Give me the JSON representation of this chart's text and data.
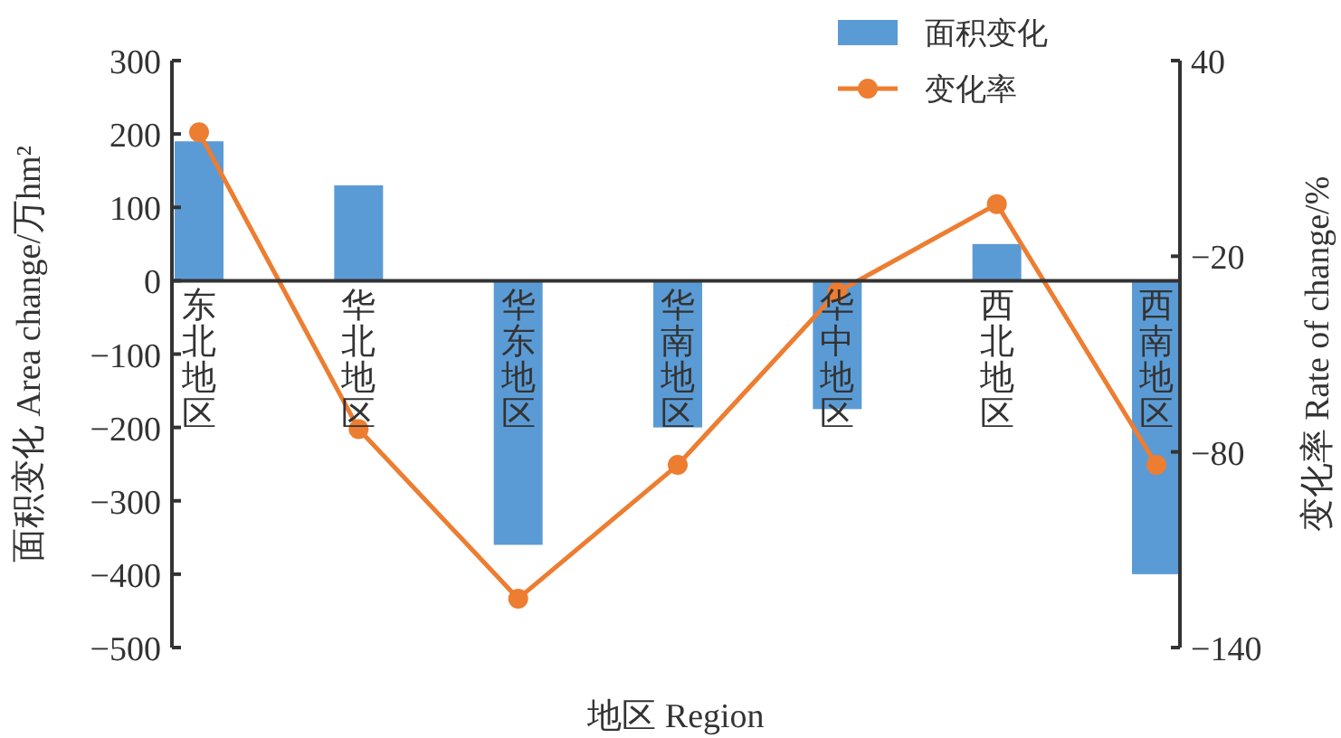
{
  "chart_data": {
    "type": "bar",
    "xlabel": "地区 Region",
    "ylabel": "面积变化 Area change/万hm²",
    "y2label": "变化率 Rate of change/%",
    "categories": [
      "东北地区",
      "华北地区",
      "华东地区",
      "华南地区",
      "华中地区",
      "西北地区",
      "西南地区"
    ],
    "series": [
      {
        "name": "面积变化",
        "color": "#5b9bd5",
        "values": [
          190,
          130,
          -360,
          -200,
          -175,
          50,
          -400
        ]
      },
      {
        "name": "变化率",
        "type": "line",
        "axis": "y2",
        "color": "#ed7d31",
        "marker": "circle",
        "values": [
          18,
          -73,
          -125,
          -84,
          -31,
          -4,
          -84
        ]
      }
    ],
    "ylim": [
      -500,
      300
    ],
    "yticks": [
      -500,
      -400,
      -300,
      -200,
      -100,
      0,
      100,
      200,
      300
    ],
    "y2lim": [
      -140,
      40
    ],
    "y2ticks": [
      -140,
      -80,
      -20,
      40
    ],
    "grid": false,
    "legend": "top right"
  }
}
